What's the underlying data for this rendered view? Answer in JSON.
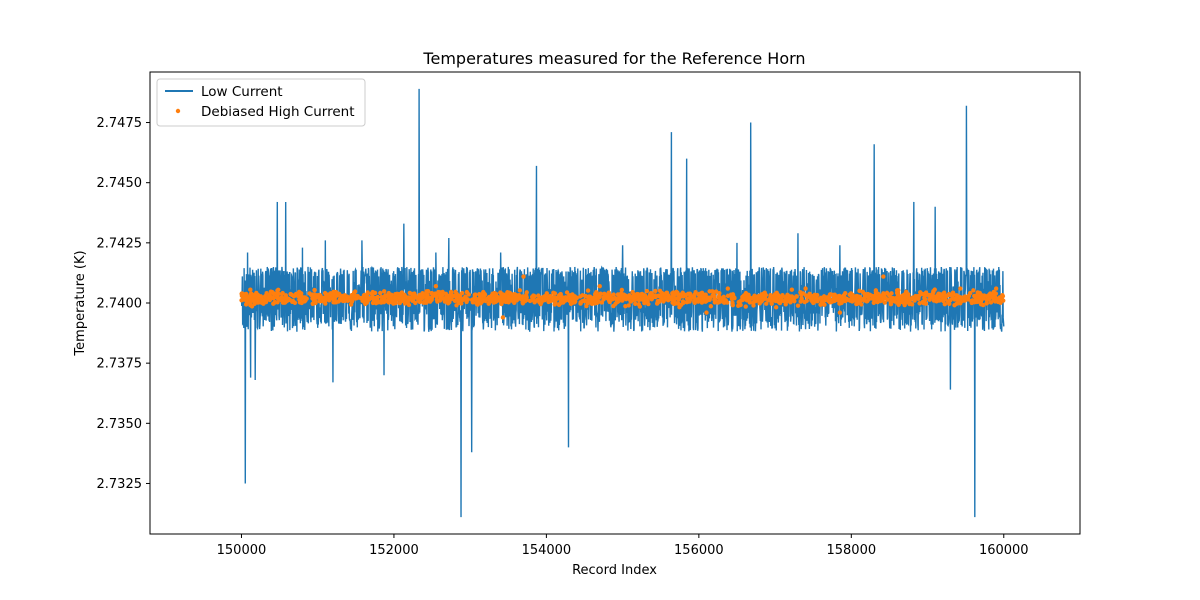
{
  "chart_data": {
    "type": "line",
    "title": "Temperatures measured for the Reference Horn",
    "xlabel": "Record Index",
    "ylabel": "Temperature (K)",
    "xlim": [
      148800,
      161000
    ],
    "ylim": [
      2.7304,
      2.7496
    ],
    "x_ticks": [
      150000,
      152000,
      154000,
      156000,
      158000,
      160000
    ],
    "x_tick_labels": [
      "150000",
      "152000",
      "154000",
      "156000",
      "158000",
      "160000"
    ],
    "y_ticks": [
      2.7325,
      2.735,
      2.7375,
      2.74,
      2.7425,
      2.745,
      2.7475
    ],
    "y_tick_labels": [
      "2.7325",
      "2.7350",
      "2.7375",
      "2.7400",
      "2.7425",
      "2.7450",
      "2.7475"
    ],
    "grid": false,
    "legend_position": "top-left",
    "series": [
      {
        "name": "Low Current",
        "kind": "line",
        "color": "#1f77b4",
        "baseline": 2.7401,
        "band_low": 2.7388,
        "band_high": 2.7415,
        "x_start": 150000,
        "x_end": 160000,
        "spikes": [
          {
            "x": 150050,
            "y": 2.7325
          },
          {
            "x": 150080,
            "y": 2.7421
          },
          {
            "x": 150120,
            "y": 2.7369
          },
          {
            "x": 150180,
            "y": 2.7368
          },
          {
            "x": 150470,
            "y": 2.7442
          },
          {
            "x": 150580,
            "y": 2.7442
          },
          {
            "x": 150800,
            "y": 2.7423
          },
          {
            "x": 151100,
            "y": 2.7426
          },
          {
            "x": 151200,
            "y": 2.7367
          },
          {
            "x": 151580,
            "y": 2.7426
          },
          {
            "x": 151870,
            "y": 2.737
          },
          {
            "x": 152130,
            "y": 2.7433
          },
          {
            "x": 152330,
            "y": 2.7489
          },
          {
            "x": 152550,
            "y": 2.7421
          },
          {
            "x": 152720,
            "y": 2.7427
          },
          {
            "x": 152880,
            "y": 2.7311
          },
          {
            "x": 153020,
            "y": 2.7338
          },
          {
            "x": 153400,
            "y": 2.7421
          },
          {
            "x": 153870,
            "y": 2.7457
          },
          {
            "x": 154290,
            "y": 2.734
          },
          {
            "x": 155000,
            "y": 2.7424
          },
          {
            "x": 155640,
            "y": 2.7471
          },
          {
            "x": 155840,
            "y": 2.746
          },
          {
            "x": 156500,
            "y": 2.7425
          },
          {
            "x": 156680,
            "y": 2.7475
          },
          {
            "x": 157300,
            "y": 2.7429
          },
          {
            "x": 157850,
            "y": 2.7424
          },
          {
            "x": 158300,
            "y": 2.7466
          },
          {
            "x": 158820,
            "y": 2.7442
          },
          {
            "x": 159100,
            "y": 2.744
          },
          {
            "x": 159300,
            "y": 2.7364
          },
          {
            "x": 159510,
            "y": 2.7482
          },
          {
            "x": 159620,
            "y": 2.7311
          }
        ]
      },
      {
        "name": "Debiased High Current",
        "kind": "scatter",
        "color": "#ff7f0e",
        "center": 2.7402,
        "spread": 0.0003,
        "outliers": [
          {
            "x": 152550,
            "y": 2.7407
          },
          {
            "x": 153430,
            "y": 2.7394
          },
          {
            "x": 153700,
            "y": 2.7411
          },
          {
            "x": 154700,
            "y": 2.7407
          },
          {
            "x": 155430,
            "y": 2.7405
          },
          {
            "x": 156100,
            "y": 2.7396
          },
          {
            "x": 156380,
            "y": 2.7406
          },
          {
            "x": 157400,
            "y": 2.7406
          },
          {
            "x": 157850,
            "y": 2.7396
          },
          {
            "x": 158420,
            "y": 2.7411
          },
          {
            "x": 159430,
            "y": 2.7406
          },
          {
            "x": 159900,
            "y": 2.7406
          }
        ]
      }
    ]
  }
}
